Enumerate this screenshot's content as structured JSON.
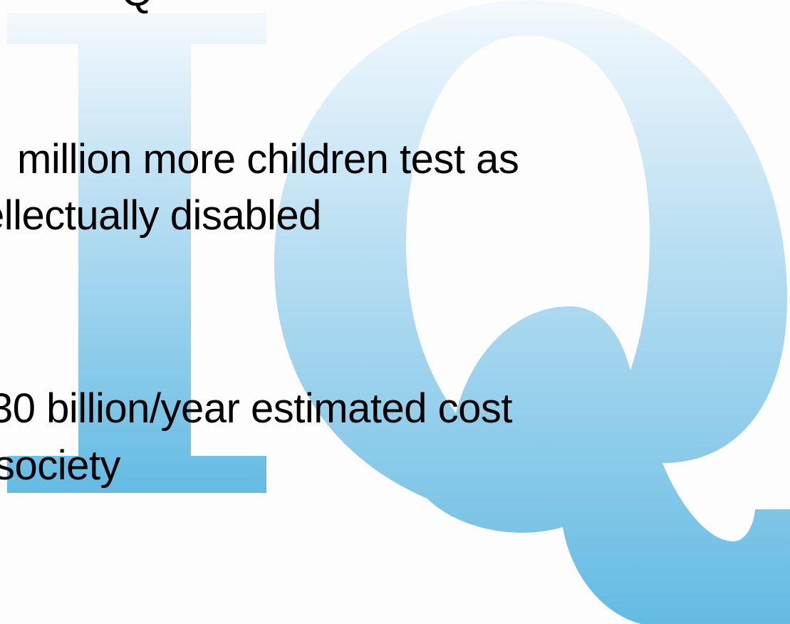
{
  "slide": {
    "graphic_letters": "IQ",
    "gradient_colors": [
      "#ecf5fb",
      "#c6e4f4",
      "#6cbde4"
    ],
    "top_fragment": "Q",
    "bullets": [
      {
        "line1": "million more children test as",
        "line2": "ellectually disabled"
      },
      {
        "line1": "30 billion/year estimated cost",
        "line2": "society"
      }
    ]
  }
}
